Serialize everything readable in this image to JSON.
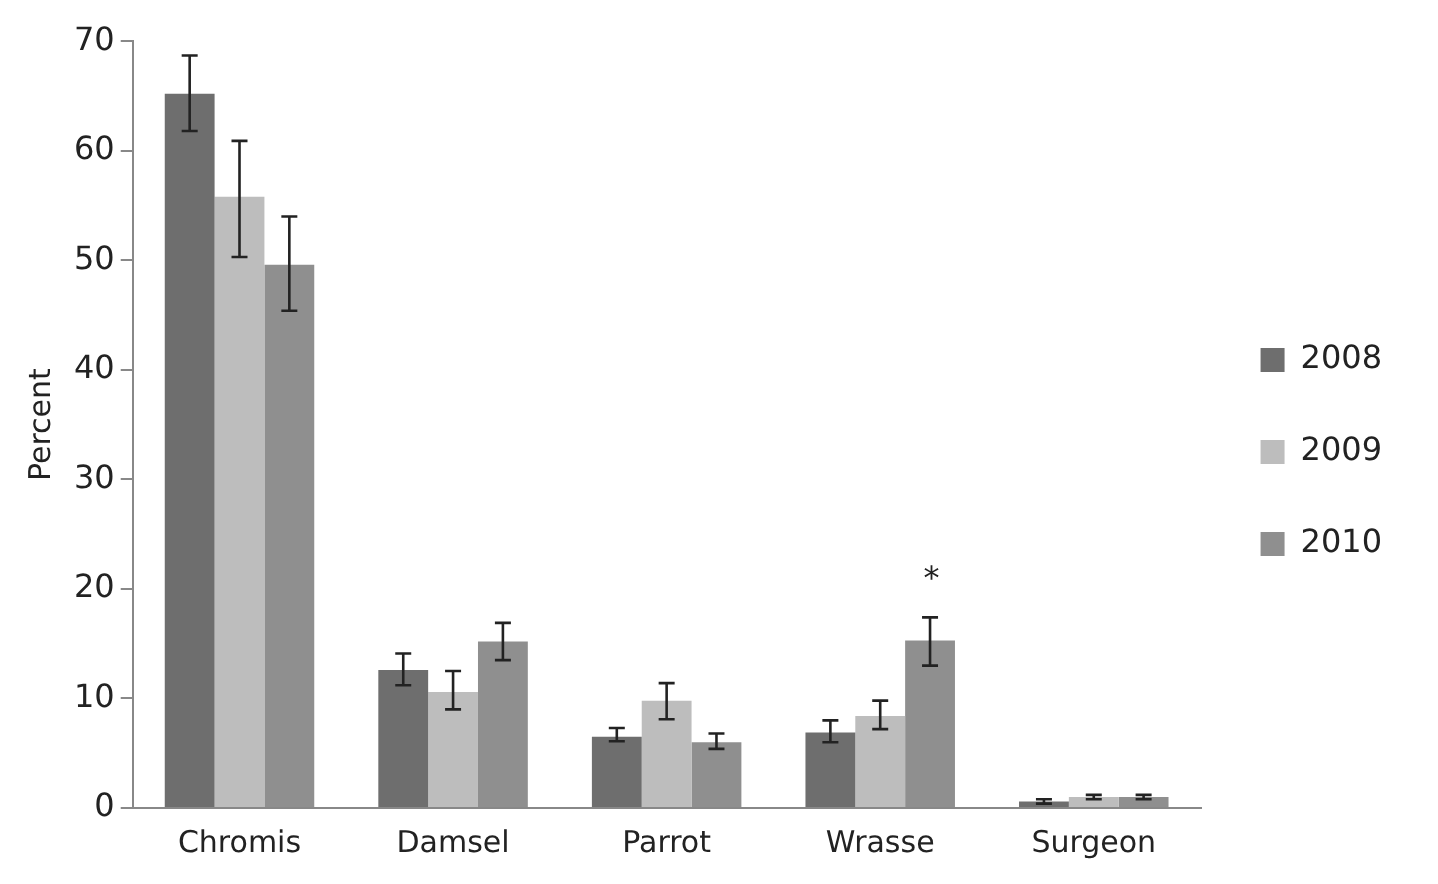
{
  "chart_data": {
    "type": "bar",
    "ylabel": "Percent",
    "categories": [
      "Chromis",
      "Damsel",
      "Parrot",
      "Wrasse",
      "Surgeon"
    ],
    "series": [
      {
        "name": "2008",
        "color": "#6e6e6e",
        "values": [
          65.2,
          12.6,
          6.5,
          6.9,
          0.6
        ],
        "errors": [
          [
            61.8,
            68.7
          ],
          [
            11.2,
            14.1
          ],
          [
            6.1,
            7.3
          ],
          [
            6.0,
            8.0
          ],
          [
            0.4,
            0.8
          ]
        ]
      },
      {
        "name": "2009",
        "color": "#bdbdbd",
        "values": [
          55.8,
          10.6,
          9.8,
          8.4,
          1.0
        ],
        "errors": [
          [
            50.3,
            60.9
          ],
          [
            9.0,
            12.5
          ],
          [
            8.1,
            11.4
          ],
          [
            7.2,
            9.8
          ],
          [
            0.8,
            1.2
          ]
        ]
      },
      {
        "name": "2010",
        "color": "#8f8f8f",
        "values": [
          49.6,
          15.2,
          6.0,
          15.3,
          1.0
        ],
        "errors": [
          [
            45.4,
            54.0
          ],
          [
            13.5,
            16.9
          ],
          [
            5.4,
            6.8
          ],
          [
            13.0,
            17.4
          ],
          [
            0.8,
            1.2
          ]
        ]
      }
    ],
    "ylim": [
      0,
      70
    ],
    "yticks": [
      0,
      10,
      20,
      30,
      40,
      50,
      60,
      70
    ],
    "grid": false,
    "legend": "right",
    "annotations": [
      "*"
    ]
  }
}
